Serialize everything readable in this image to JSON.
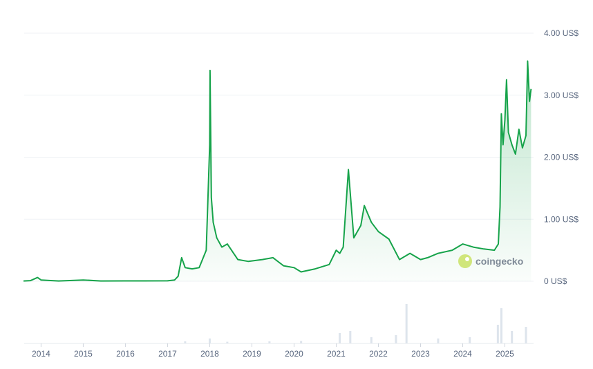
{
  "chart_data": {
    "type": "area",
    "ylim": [
      0,
      4
    ],
    "y_unit": "US$",
    "y_ticks": [
      {
        "value": 4,
        "label": "4.00 US$"
      },
      {
        "value": 3,
        "label": "3.00 US$"
      },
      {
        "value": 2,
        "label": "2.00 US$"
      },
      {
        "value": 1,
        "label": "1.00 US$"
      },
      {
        "value": 0,
        "label": "0 US$"
      }
    ],
    "x_ticks": [
      "2014",
      "2015",
      "2016",
      "2017",
      "2018",
      "2019",
      "2020",
      "2021",
      "2022",
      "2023",
      "2024",
      "2025"
    ],
    "grid": true,
    "series": [
      {
        "color": "#16a34a",
        "x": [
          "2013-08",
          "2013-10",
          "2013-12",
          "2014-01",
          "2014-06",
          "2015-01",
          "2015-06",
          "2016-01",
          "2016-06",
          "2017-01",
          "2017-03",
          "2017-04",
          "2017-05",
          "2017-06",
          "2017-08",
          "2017-10",
          "2017-12",
          "2018-01-01",
          "2018-01-04",
          "2018-01-15",
          "2018-02-01",
          "2018-03-01",
          "2018-04-15",
          "2018-06",
          "2018-09",
          "2018-12",
          "2019-04",
          "2019-07",
          "2019-10",
          "2020-01",
          "2020-03",
          "2020-07",
          "2020-11",
          "2021-01",
          "2021-02",
          "2021-03",
          "2021-04-15",
          "2021-06",
          "2021-08",
          "2021-09",
          "2021-11",
          "2022-01",
          "2022-04",
          "2022-07",
          "2022-10",
          "2023-01",
          "2023-03",
          "2023-06",
          "2023-10",
          "2024-01",
          "2024-04",
          "2024-07",
          "2024-10",
          "2024-11-05",
          "2024-11-20",
          "2024-12-01",
          "2024-12-15",
          "2025-01-01",
          "2025-01-15",
          "2025-02-01",
          "2025-03",
          "2025-04",
          "2025-05",
          "2025-06",
          "2025-07-01",
          "2025-07-15",
          "2025-08-01",
          "2025-08-15"
        ],
        "y": [
          0.005,
          0.01,
          0.06,
          0.02,
          0.005,
          0.02,
          0.005,
          0.006,
          0.006,
          0.007,
          0.02,
          0.08,
          0.38,
          0.22,
          0.2,
          0.22,
          0.5,
          2.2,
          3.4,
          1.35,
          0.95,
          0.7,
          0.55,
          0.6,
          0.35,
          0.32,
          0.35,
          0.38,
          0.25,
          0.22,
          0.15,
          0.2,
          0.27,
          0.5,
          0.45,
          0.55,
          1.8,
          0.7,
          0.9,
          1.22,
          0.95,
          0.8,
          0.68,
          0.35,
          0.45,
          0.35,
          0.38,
          0.45,
          0.5,
          0.6,
          0.55,
          0.52,
          0.5,
          0.6,
          1.2,
          2.7,
          2.2,
          2.6,
          3.25,
          2.4,
          2.2,
          2.05,
          2.45,
          2.15,
          2.35,
          3.55,
          2.9,
          3.1
        ]
      }
    ],
    "volume": {
      "x": [
        "2017-06",
        "2018-01",
        "2018-06",
        "2019-06",
        "2020-03",
        "2021-02",
        "2021-05",
        "2021-11",
        "2022-06",
        "2022-09",
        "2023-06",
        "2024-03",
        "2024-11",
        "2024-12",
        "2025-03",
        "2025-07"
      ],
      "v": [
        0.05,
        0.12,
        0.04,
        0.05,
        0.06,
        0.25,
        0.3,
        0.15,
        0.2,
        0.95,
        0.12,
        0.15,
        0.45,
        0.85,
        0.3,
        0.4
      ]
    }
  },
  "watermark": "coingecko"
}
